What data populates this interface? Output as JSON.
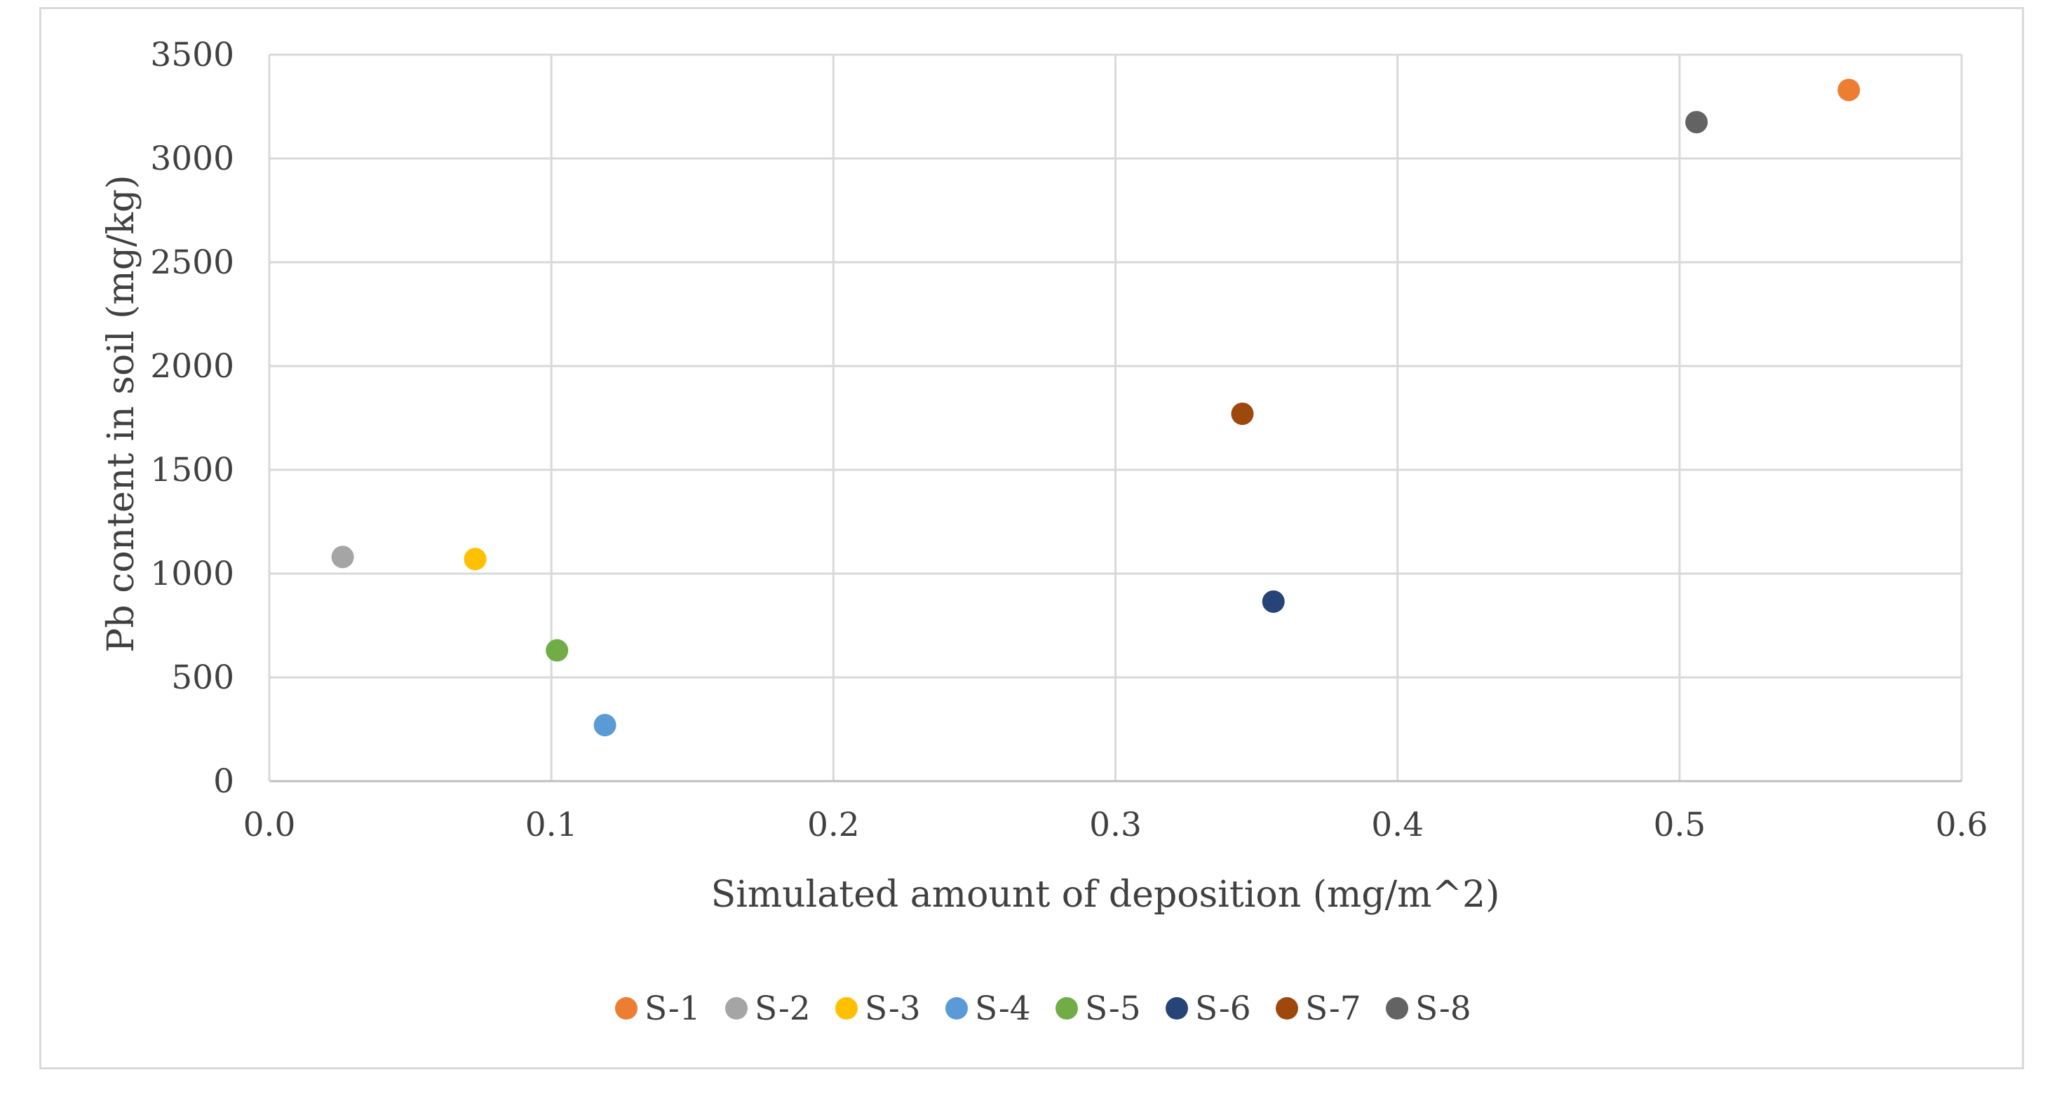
{
  "chart_data": {
    "type": "scatter",
    "title": "",
    "xlabel": "Simulated amount of deposition (mg/m^2)",
    "ylabel": "Pb content in soil (mg/kg)",
    "xlim": [
      0,
      0.6
    ],
    "ylim": [
      0,
      3500
    ],
    "x_ticks": [
      "0.0",
      "0.1",
      "0.2",
      "0.3",
      "0.4",
      "0.5",
      "0.6"
    ],
    "y_ticks": [
      "0",
      "500",
      "1000",
      "1500",
      "2000",
      "2500",
      "3000",
      "3500"
    ],
    "x_tick_values": [
      0,
      0.1,
      0.2,
      0.3,
      0.4,
      0.5,
      0.6
    ],
    "y_tick_values": [
      0,
      500,
      1000,
      1500,
      2000,
      2500,
      3000,
      3500
    ],
    "grid": true,
    "legend_position": "bottom",
    "series": [
      {
        "name": "S-1",
        "color": "#ED7D31",
        "x": 0.56,
        "y": 3330
      },
      {
        "name": "S-2",
        "color": "#A5A5A5",
        "x": 0.026,
        "y": 1080
      },
      {
        "name": "S-3",
        "color": "#FFC000",
        "x": 0.073,
        "y": 1070
      },
      {
        "name": "S-4",
        "color": "#5B9BD5",
        "x": 0.119,
        "y": 270
      },
      {
        "name": "S-5",
        "color": "#70AD47",
        "x": 0.102,
        "y": 630
      },
      {
        "name": "S-6",
        "color": "#264478",
        "x": 0.356,
        "y": 865
      },
      {
        "name": "S-7",
        "color": "#9E480E",
        "x": 0.345,
        "y": 1770
      },
      {
        "name": "S-8",
        "color": "#636363",
        "x": 0.506,
        "y": 3175
      }
    ]
  }
}
